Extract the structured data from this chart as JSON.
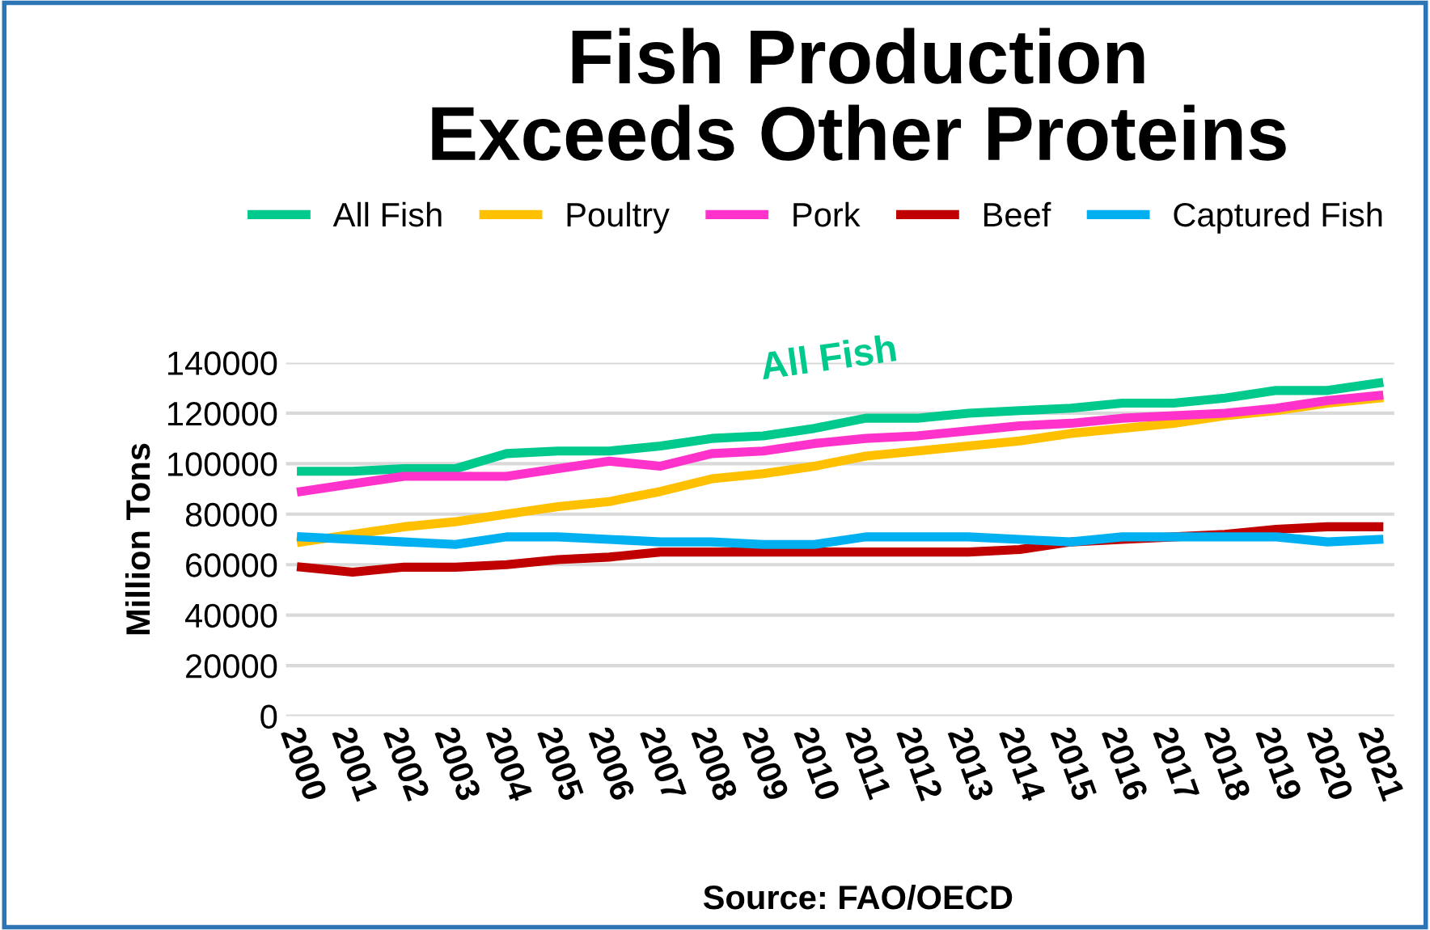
{
  "chart_data": {
    "type": "line",
    "title": "Fish Production\nExceeds Other Proteins",
    "ylabel": "Million Tons",
    "categories": [
      "2000",
      "2001",
      "2002",
      "2003",
      "2004",
      "2005",
      "2006",
      "2007",
      "2008",
      "2009",
      "2010",
      "2011",
      "2012",
      "2013",
      "2014",
      "2015",
      "2016",
      "2017",
      "2018",
      "2019",
      "2020",
      "2021"
    ],
    "series": [
      {
        "name": "All Fish",
        "color": "#00c98d",
        "values": [
          97000,
          97000,
          98000,
          98000,
          104000,
          105000,
          105000,
          107000,
          110000,
          111000,
          114000,
          118000,
          118000,
          120000,
          121000,
          122000,
          124000,
          124000,
          126000,
          129000,
          129000,
          132000
        ]
      },
      {
        "name": "Poultry",
        "color": "#ffc000",
        "values": [
          69000,
          72000,
          75000,
          77000,
          80000,
          83000,
          85000,
          89000,
          94000,
          96000,
          99000,
          103000,
          105000,
          107000,
          109000,
          112000,
          114000,
          116000,
          119000,
          121000,
          124000,
          126000
        ]
      },
      {
        "name": "Pork",
        "color": "#ff33cc",
        "values": [
          89000,
          92000,
          95000,
          95000,
          95000,
          98000,
          101000,
          99000,
          104000,
          105000,
          108000,
          110000,
          111000,
          113000,
          115000,
          116000,
          118000,
          119000,
          120000,
          122000,
          125000,
          127000
        ]
      },
      {
        "name": "Beef",
        "color": "#c00000",
        "values": [
          59000,
          57000,
          59000,
          59000,
          60000,
          62000,
          63000,
          65000,
          65000,
          65000,
          65000,
          65000,
          65000,
          65000,
          66000,
          69000,
          70000,
          71000,
          72000,
          74000,
          75000,
          75000
        ]
      },
      {
        "name": "Captured Fish",
        "color": "#00b0f0",
        "values": [
          71000,
          70000,
          69000,
          68000,
          71000,
          71000,
          70000,
          69000,
          69000,
          68000,
          68000,
          71000,
          71000,
          71000,
          70000,
          69000,
          71000,
          71000,
          71000,
          71000,
          69000,
          70000
        ]
      }
    ],
    "annotations": [
      "All Fish",
      "Source: FAO/OECD"
    ],
    "ylim": [
      0,
      140000
    ],
    "yticks": [
      0,
      20000,
      40000,
      60000,
      80000,
      100000,
      120000,
      140000
    ],
    "grid": "y",
    "legend": "top",
    "marker": "none",
    "line_style": "solid"
  }
}
